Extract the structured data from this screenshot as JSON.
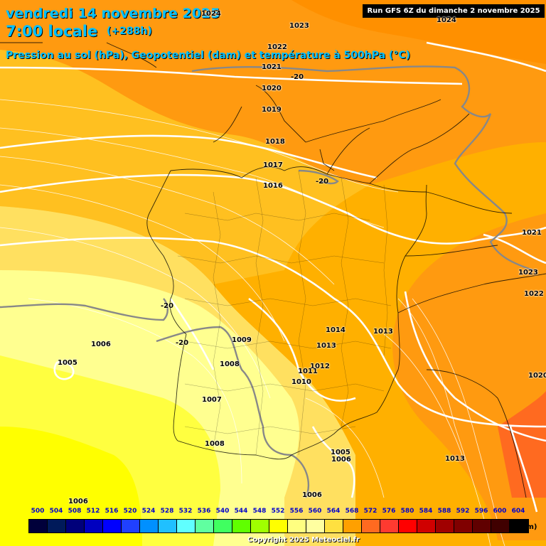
{
  "map": {
    "title_date": "vendredi 14 novembre 2025",
    "title_time": "7:00 locale",
    "lead_time": "(+288h)",
    "subtitle": "Pression au sol (hPa), Geopotentiel (dam) et température à 500hPa (°C)",
    "run_info": "Run GFS 6Z du dimanche 2 novembre 2025",
    "copyright": "Copyright 2025 Meteociel.fr",
    "scale_unit": "(dam)"
  },
  "pressure_labels": [
    "1024",
    "1023",
    "1024",
    "1022",
    "1021",
    "1020",
    "1019",
    "1018",
    "1017",
    "1016",
    "1021",
    "1023",
    "1022",
    "1014",
    "1013",
    "1013",
    "1012",
    "1011",
    "1010",
    "1009",
    "1008",
    "1007",
    "1006",
    "1005",
    "1008",
    "1005",
    "1006",
    "1006",
    "1006",
    "1013",
    "1020"
  ],
  "temp_labels": [
    "-20",
    "-20",
    "-20",
    "-20"
  ],
  "scale": {
    "values": [
      "500",
      "504",
      "508",
      "512",
      "516",
      "520",
      "524",
      "528",
      "532",
      "536",
      "540",
      "544",
      "548",
      "552",
      "556",
      "560",
      "564",
      "568",
      "572",
      "576",
      "580",
      "584",
      "588",
      "592",
      "596",
      "600",
      "604"
    ],
    "colors": [
      "#00003a",
      "#001a5a",
      "#00007a",
      "#0000c0",
      "#0000ff",
      "#2040ff",
      "#0090ff",
      "#20c0ff",
      "#60ffff",
      "#60ffa0",
      "#40ff60",
      "#60ff00",
      "#a0ff00",
      "#ffff00",
      "#ffff80",
      "#ffffa0",
      "#ffe040",
      "#ffa000",
      "#ff6a20",
      "#ff3a30",
      "#ff0000",
      "#d00000",
      "#a00000",
      "#800000",
      "#600000",
      "#400000",
      "#000000"
    ]
  }
}
